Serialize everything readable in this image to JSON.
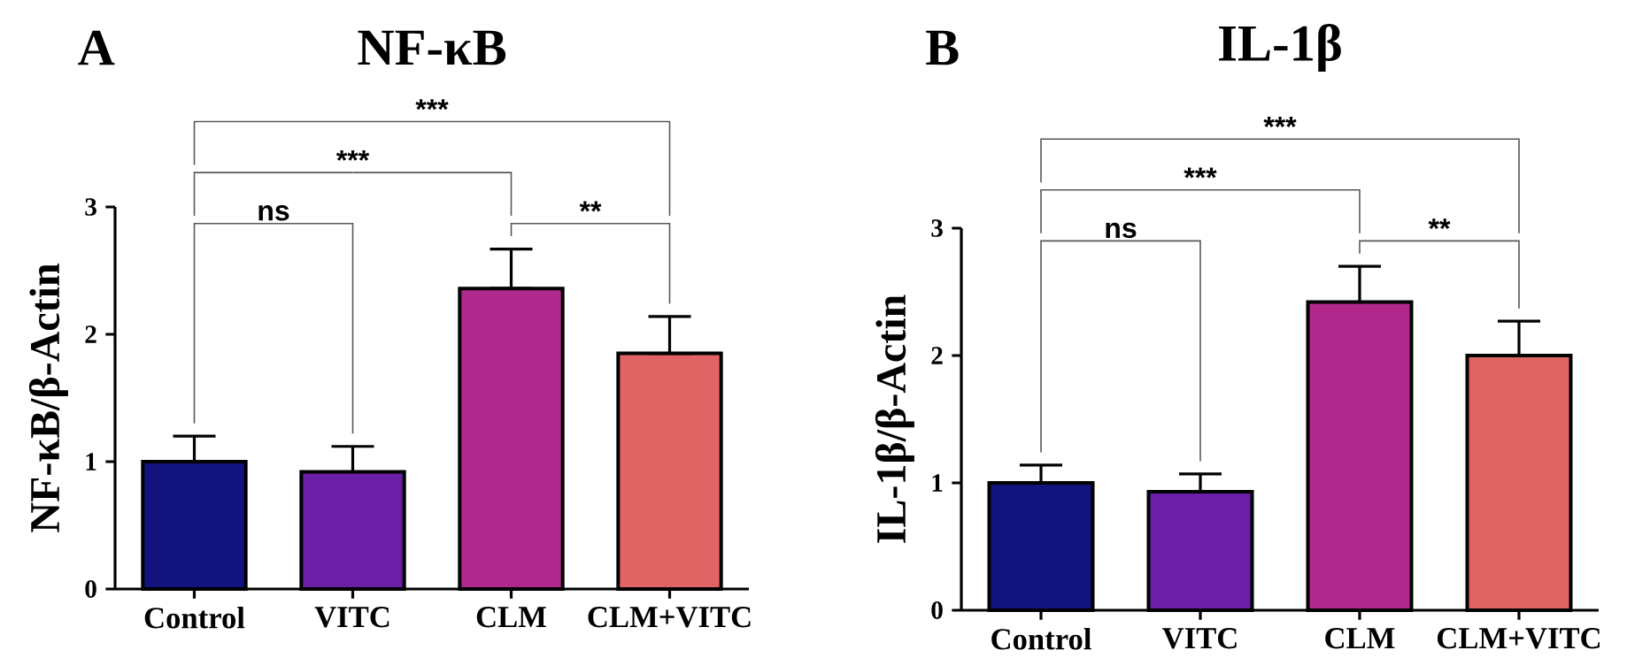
{
  "chart_data": [
    {
      "type": "bar",
      "title": "NF-κB",
      "ylabel": "NF-κB/β-Actin",
      "categories": [
        "Control",
        "VITC",
        "CLM",
        "CLM+VITC"
      ],
      "values": [
        1.0,
        0.92,
        2.36,
        1.85
      ],
      "colors": [
        "#13137f",
        "#6a1fa6",
        "#b0288c",
        "#e06464"
      ],
      "errors": [
        [
          1.0,
          1.2
        ],
        [
          0.92,
          1.12
        ],
        [
          2.36,
          2.67
        ],
        [
          1.85,
          2.14
        ]
      ],
      "ylim": [
        0,
        3
      ],
      "yticks": [
        0,
        1,
        2,
        3
      ],
      "annotations": [
        "A",
        "***",
        "***",
        "ns",
        "**"
      ]
    },
    {
      "type": "bar",
      "title": "IL-1β",
      "ylabel": "IL-1β/β-Actin",
      "categories": [
        "Control",
        "VITC",
        "CLM",
        "CLM+VITC"
      ],
      "values": [
        1.0,
        0.93,
        2.42,
        2.0
      ],
      "colors": [
        "#13137f",
        "#6a1fa6",
        "#b0288c",
        "#e06464"
      ],
      "errors": [
        [
          1.0,
          1.14
        ],
        [
          0.93,
          1.07
        ],
        [
          2.42,
          2.7
        ],
        [
          2.0,
          2.27
        ]
      ],
      "ylim": [
        0,
        3
      ],
      "yticks": [
        0,
        1,
        2,
        3
      ],
      "annotations": [
        "B",
        "***",
        "***",
        "ns",
        "**"
      ]
    }
  ]
}
